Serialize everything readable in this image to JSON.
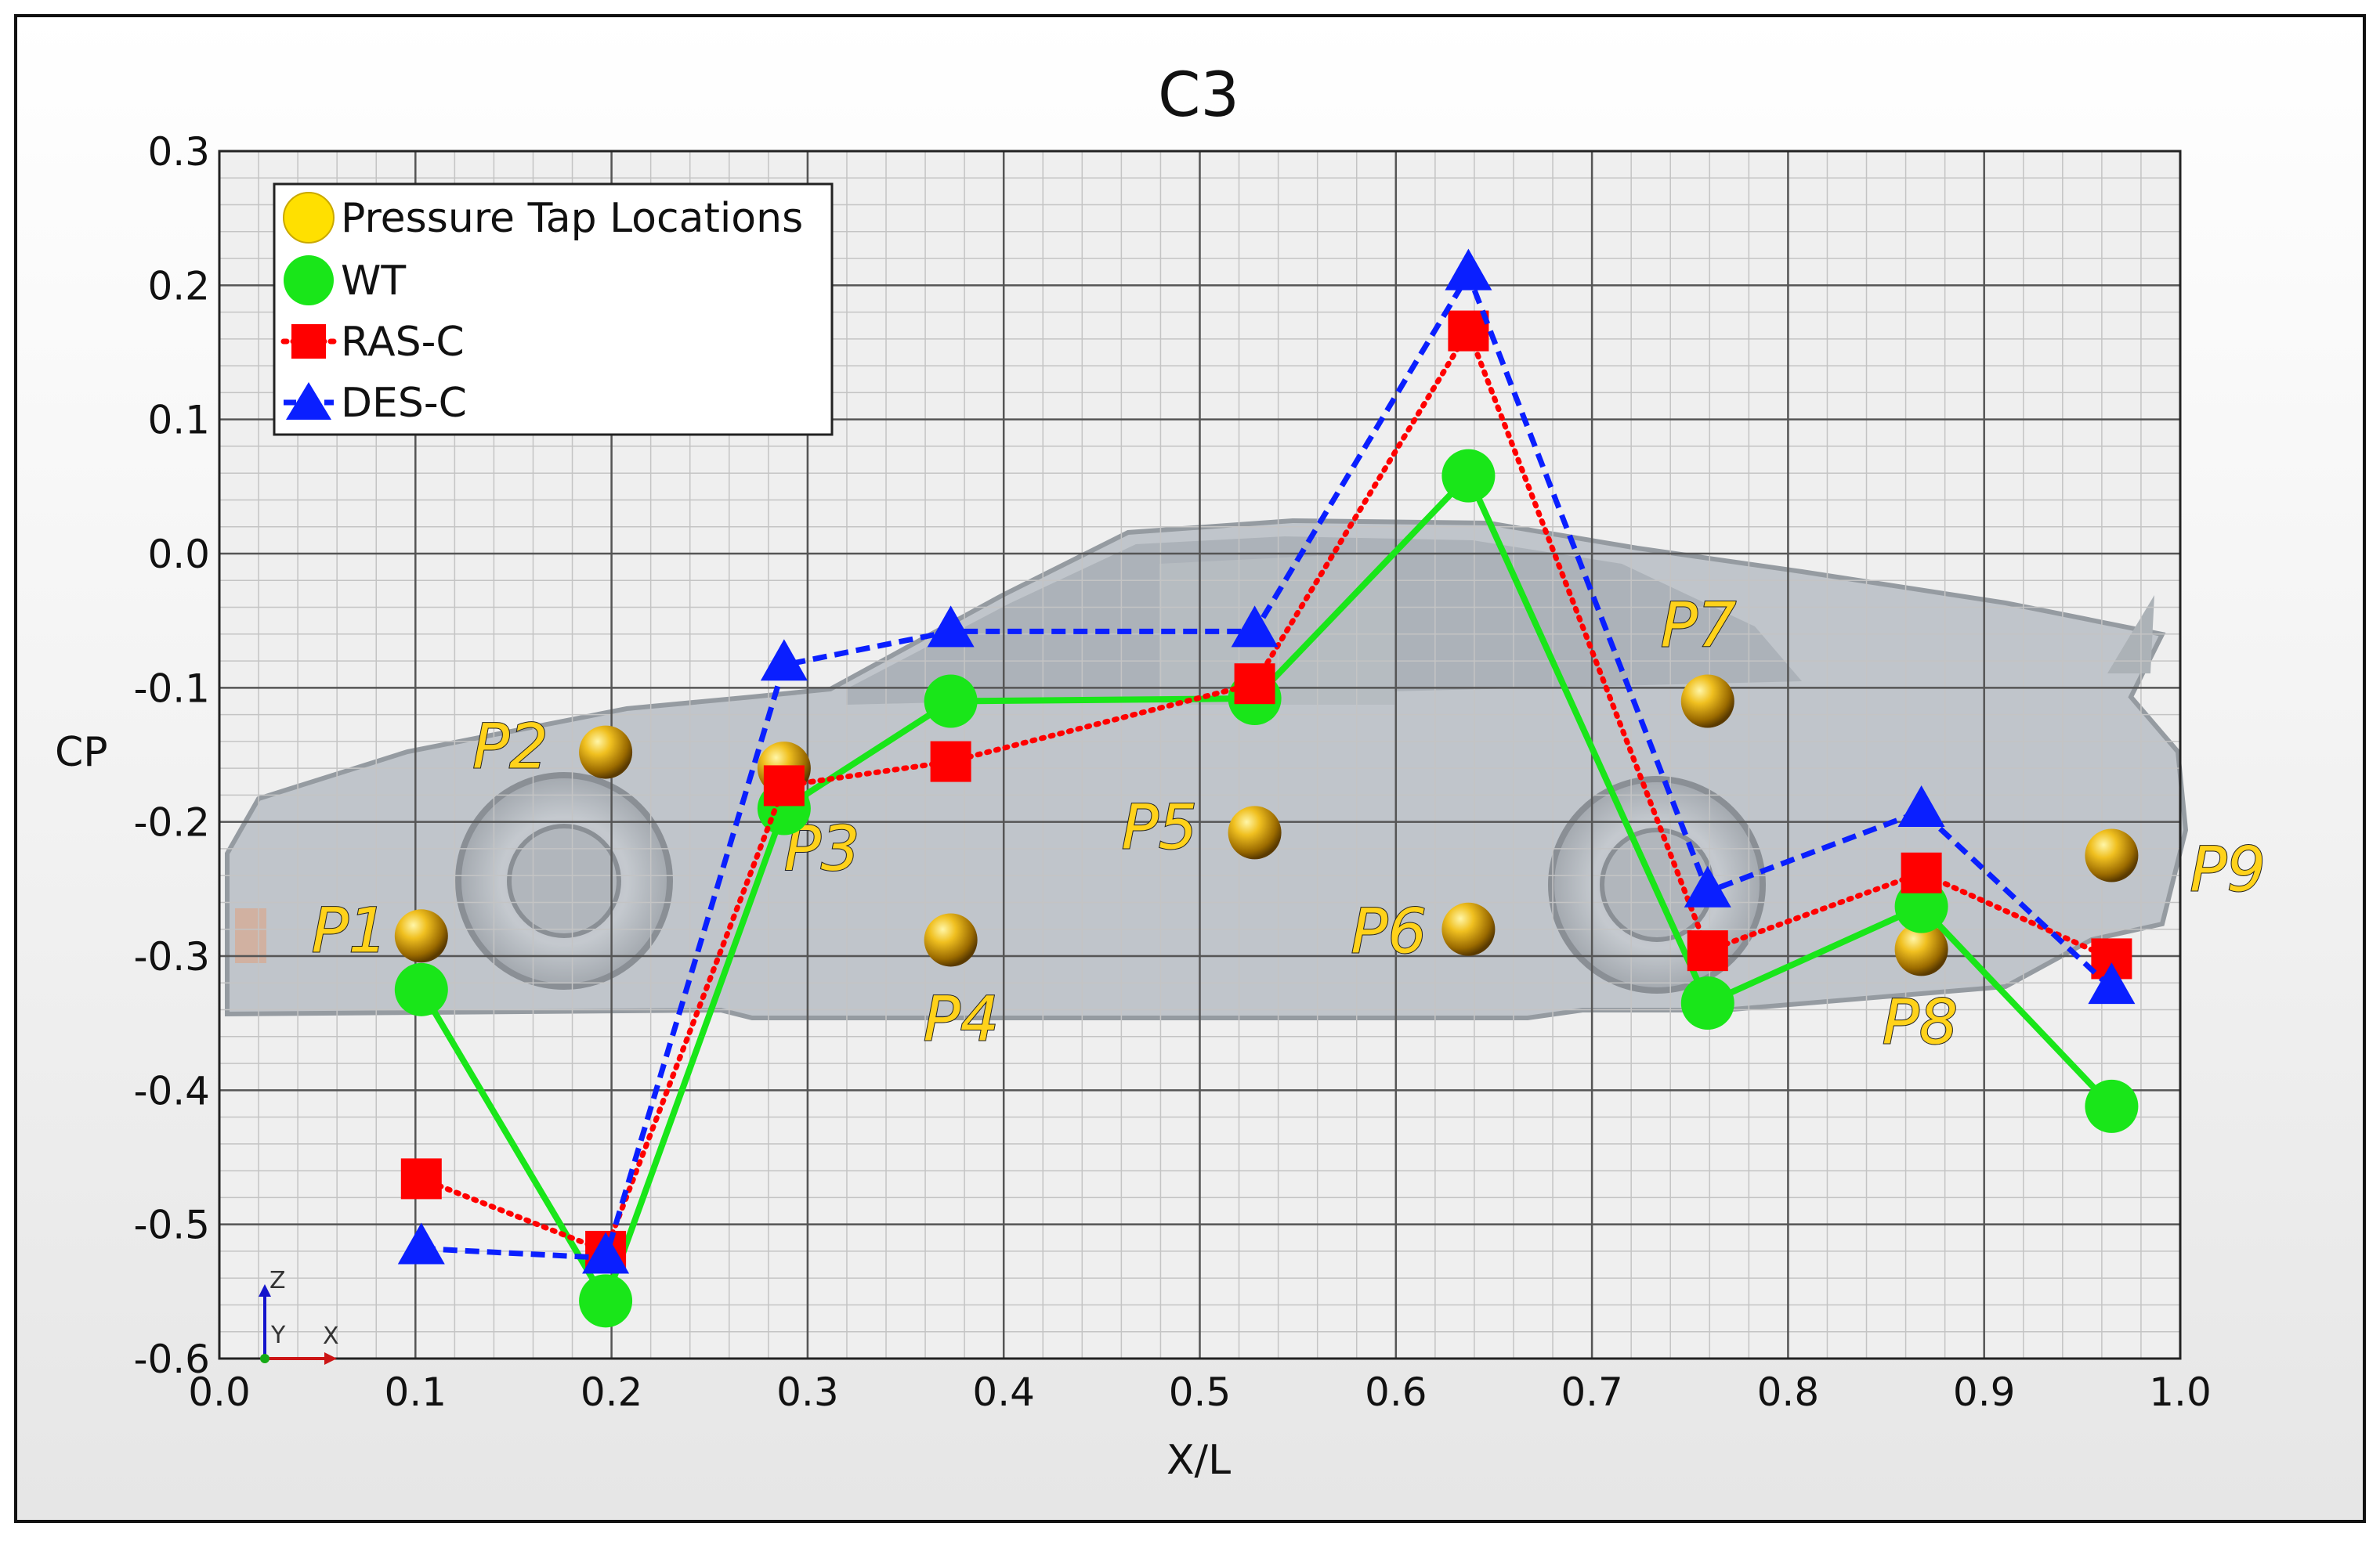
{
  "chart_data": {
    "type": "line",
    "title": "C3",
    "xlabel": "X/L",
    "ylabel": "CP",
    "xlim": [
      0.0,
      1.0
    ],
    "ylim": [
      -0.6,
      0.3
    ],
    "x_ticks": [
      "0.0",
      "0.1",
      "0.2",
      "0.3",
      "0.4",
      "0.5",
      "0.6",
      "0.7",
      "0.8",
      "0.9",
      "1.0"
    ],
    "y_ticks": [
      "0.3",
      "0.2",
      "0.1",
      "0.0",
      "-0.1",
      "-0.2",
      "-0.3",
      "-0.4",
      "-0.5",
      "-0.6"
    ],
    "grid": true,
    "legend_position": "top-left",
    "legend": [
      "Pressure Tap Locations",
      "WT",
      "RAS-C",
      "DES-C"
    ],
    "pressure_taps": [
      {
        "label": "P1",
        "x": 0.103,
        "y": -0.285
      },
      {
        "label": "P2",
        "x": 0.197,
        "y": -0.148
      },
      {
        "label": "P3",
        "x": 0.288,
        "y": -0.16
      },
      {
        "label": "P4",
        "x": 0.373,
        "y": -0.288
      },
      {
        "label": "P5",
        "x": 0.528,
        "y": -0.208
      },
      {
        "label": "P6",
        "x": 0.637,
        "y": -0.28
      },
      {
        "label": "P7",
        "x": 0.759,
        "y": -0.11
      },
      {
        "label": "P8",
        "x": 0.868,
        "y": -0.295
      },
      {
        "label": "P9",
        "x": 0.965,
        "y": -0.225
      }
    ],
    "series": [
      {
        "name": "WT",
        "color": "#19e619",
        "marker": "circle",
        "line": "solid",
        "x": [
          0.103,
          0.197,
          0.288,
          0.373,
          0.528,
          0.637,
          0.759,
          0.868,
          0.965
        ],
        "y": [
          -0.325,
          -0.557,
          -0.19,
          -0.11,
          -0.108,
          0.058,
          -0.335,
          -0.263,
          -0.412
        ]
      },
      {
        "name": "RAS-C",
        "color": "#ff0000",
        "marker": "square",
        "line": "dotted",
        "x": [
          0.103,
          0.197,
          0.288,
          0.373,
          0.528,
          0.637,
          0.759,
          0.868,
          0.965
        ],
        "y": [
          -0.466,
          -0.52,
          -0.173,
          -0.155,
          -0.097,
          0.166,
          -0.296,
          -0.238,
          -0.302
        ]
      },
      {
        "name": "DES-C",
        "color": "#0a1fff",
        "marker": "triangle",
        "line": "dashed",
        "x": [
          0.103,
          0.197,
          0.288,
          0.373,
          0.528,
          0.637,
          0.759,
          0.868,
          0.965
        ],
        "y": [
          -0.518,
          -0.525,
          -0.083,
          -0.058,
          -0.058,
          0.208,
          -0.252,
          -0.192,
          -0.324
        ]
      }
    ]
  },
  "axis_triad": {
    "z": "Z",
    "y": "Y",
    "x": "X"
  }
}
